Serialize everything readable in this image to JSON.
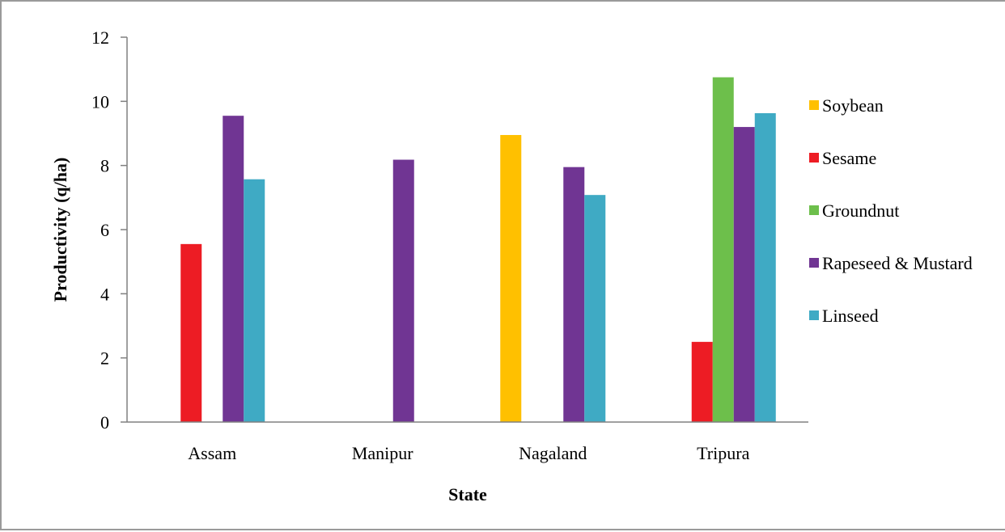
{
  "chart_data": {
    "type": "bar",
    "title": "",
    "xlabel": "State",
    "ylabel": "Productivity (q/ha)",
    "categories": [
      "Assam",
      "Manipur",
      "Nagaland",
      "Tripura"
    ],
    "ylim": [
      0,
      12
    ],
    "yticks": [
      "0",
      "2",
      "4",
      "6",
      "8",
      "10",
      "12"
    ],
    "grid": false,
    "legend_position": "right",
    "series": [
      {
        "name": "Soybean",
        "color": "#FFC000",
        "values": [
          null,
          null,
          8.95,
          null
        ]
      },
      {
        "name": "Sesame",
        "color": "#ED1C24",
        "values": [
          5.55,
          null,
          null,
          2.5
        ]
      },
      {
        "name": "Groundnut",
        "color": "#6DBF4B",
        "values": [
          null,
          null,
          null,
          10.75
        ]
      },
      {
        "name": "Rapeseed & Mustard",
        "color": "#703593",
        "values": [
          9.55,
          8.18,
          7.95,
          9.2
        ]
      },
      {
        "name": "Linseed",
        "color": "#3FAAC4",
        "values": [
          7.57,
          null,
          7.08,
          9.63
        ]
      }
    ]
  }
}
